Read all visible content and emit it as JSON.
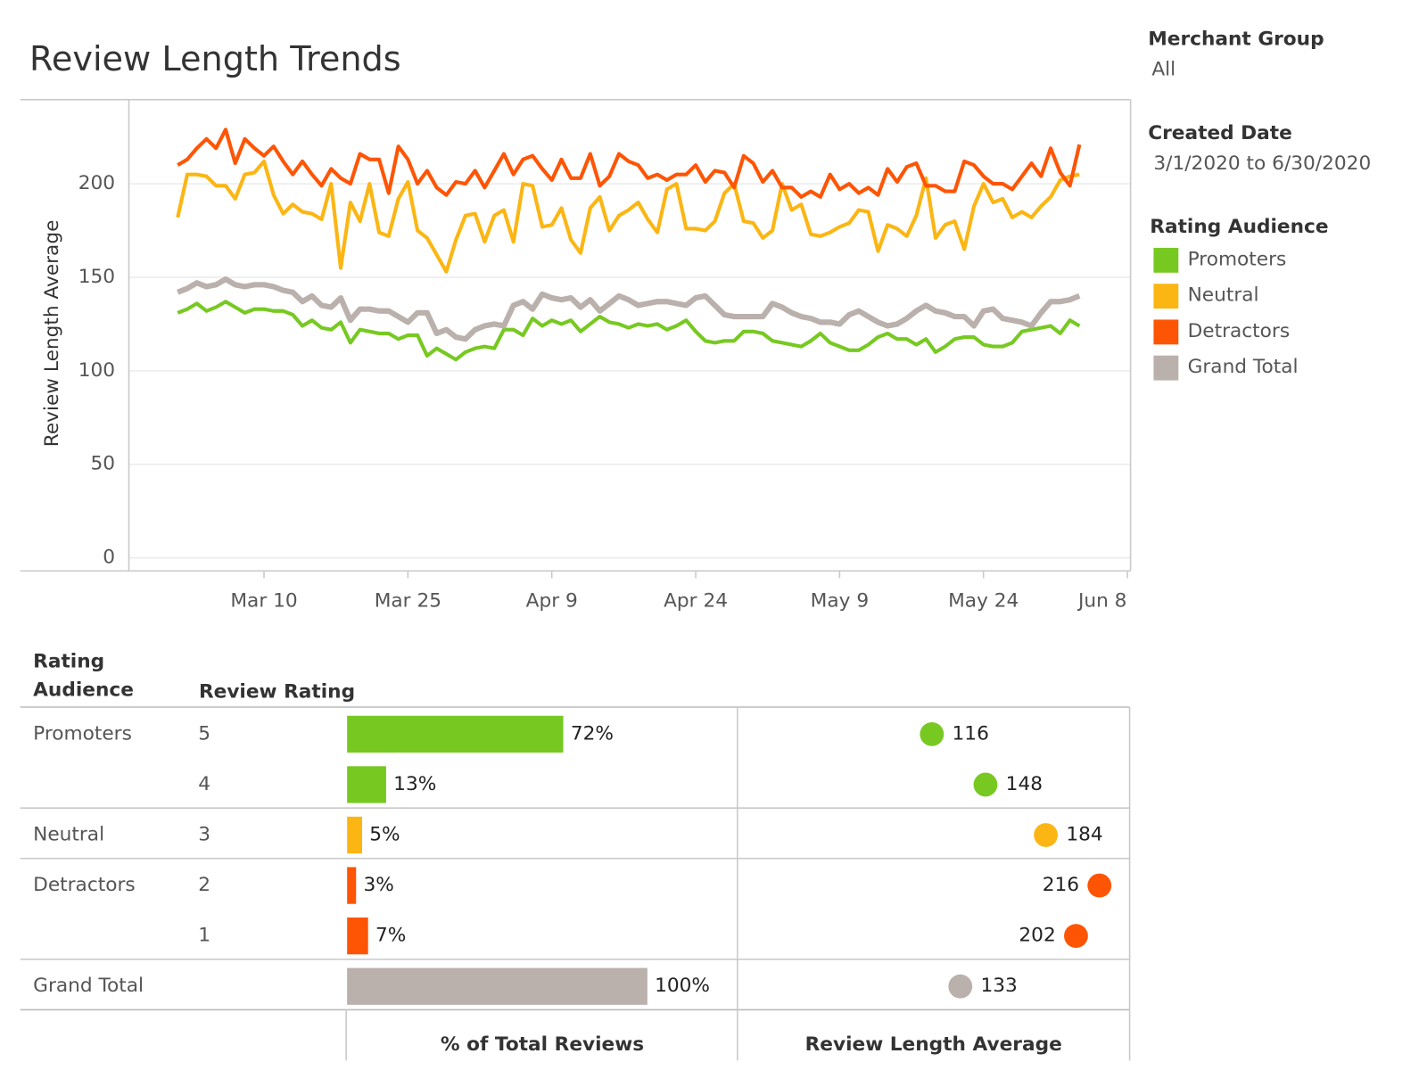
{
  "title": "Review Length Trends",
  "filters": [
    {
      "title": "Merchant Group",
      "value": "All"
    },
    {
      "title": "Created Date",
      "value": "3/1/2020 to 6/30/2020"
    }
  ],
  "chart_data": [
    {
      "type": "line",
      "y_label": "Review Length Average",
      "legend_title": "Rating Audience",
      "categories": [
        null,
        null,
        null,
        null,
        null,
        null,
        null,
        null,
        null,
        "Mar 10",
        null,
        null,
        null,
        null,
        null,
        null,
        null,
        null,
        null,
        null,
        null,
        null,
        null,
        null,
        "Mar 25",
        null,
        null,
        null,
        null,
        null,
        null,
        null,
        null,
        null,
        null,
        null,
        null,
        null,
        null,
        "Apr 9",
        null,
        null,
        null,
        null,
        null,
        null,
        null,
        null,
        null,
        null,
        null,
        null,
        null,
        null,
        "Apr 24",
        null,
        null,
        null,
        null,
        null,
        null,
        null,
        null,
        null,
        null,
        null,
        null,
        null,
        null,
        "May 9",
        null,
        null,
        null,
        null,
        null,
        null,
        null,
        null,
        null,
        null,
        null,
        null,
        null,
        null,
        "May 24",
        null,
        null,
        null,
        null,
        null,
        null,
        null,
        null,
        null,
        null,
        null,
        null,
        null,
        null,
        "Jun 8"
      ],
      "ylim": [
        -7,
        245
      ],
      "yticks": [
        0,
        50,
        100,
        150,
        200
      ],
      "grid": true,
      "series": [
        {
          "name": "Promoters",
          "color": "#77c922",
          "values": [
            131,
            133,
            136,
            132,
            134,
            137,
            134,
            131,
            133,
            133,
            132,
            132,
            130,
            124,
            127,
            123,
            122,
            126,
            115,
            122,
            121,
            120,
            120,
            117,
            119,
            119,
            108,
            112,
            109,
            106,
            110,
            112,
            113,
            112,
            122,
            122,
            119,
            128,
            124,
            127,
            125,
            127,
            121,
            125,
            129,
            126,
            125,
            123,
            125,
            124,
            125,
            122,
            124,
            127,
            121,
            116,
            115,
            116,
            116,
            121,
            121,
            120,
            116,
            115,
            114,
            113,
            116,
            120,
            115,
            113,
            111,
            111,
            114,
            118,
            120,
            117,
            117,
            114,
            117,
            110,
            113,
            117,
            118,
            118,
            114,
            113,
            113,
            115,
            121,
            122,
            123,
            124,
            120,
            127,
            124,
            null,
            null,
            null,
            null,
            null
          ]
        },
        {
          "name": "Neutral",
          "color": "#fbb614",
          "values": [
            182,
            205,
            205,
            204,
            199,
            199,
            192,
            205,
            206,
            212,
            194,
            184,
            189,
            185,
            184,
            181,
            200,
            155,
            190,
            180,
            200,
            174,
            172,
            192,
            201,
            175,
            171,
            162,
            153,
            170,
            183,
            184,
            169,
            183,
            186,
            169,
            200,
            199,
            177,
            178,
            187,
            170,
            163,
            187,
            193,
            175,
            183,
            186,
            190,
            181,
            174,
            197,
            200,
            176,
            176,
            175,
            180,
            195,
            200,
            180,
            179,
            171,
            175,
            200,
            186,
            189,
            173,
            172,
            174,
            177,
            179,
            186,
            185,
            164,
            178,
            176,
            172,
            183,
            203,
            171,
            178,
            180,
            165,
            188,
            200,
            190,
            192,
            182,
            185,
            182,
            188,
            193,
            202,
            204,
            205,
            null,
            null,
            null,
            null,
            null
          ]
        },
        {
          "name": "Detractors",
          "color": "#fe5505",
          "values": [
            210,
            213,
            219,
            224,
            219,
            229,
            211,
            224,
            219,
            215,
            220,
            212,
            205,
            212,
            205,
            199,
            208,
            203,
            200,
            216,
            213,
            213,
            195,
            220,
            213,
            200,
            207,
            198,
            194,
            201,
            200,
            207,
            198,
            207,
            216,
            205,
            213,
            215,
            208,
            202,
            213,
            203,
            203,
            216,
            199,
            204,
            216,
            212,
            210,
            203,
            205,
            202,
            205,
            205,
            210,
            201,
            207,
            206,
            198,
            215,
            211,
            201,
            207,
            198,
            198,
            193,
            196,
            193,
            205,
            197,
            200,
            195,
            198,
            194,
            208,
            201,
            209,
            211,
            199,
            199,
            196,
            196,
            212,
            210,
            204,
            200,
            200,
            197,
            204,
            211,
            204,
            219,
            206,
            199,
            221,
            null,
            null,
            null,
            null,
            null
          ]
        },
        {
          "name": "Grand Total",
          "color": "#bab0ac",
          "values": [
            142,
            144,
            147,
            145,
            146,
            149,
            146,
            145,
            146,
            146,
            145,
            143,
            142,
            137,
            140,
            135,
            134,
            139,
            127,
            133,
            133,
            132,
            132,
            129,
            126,
            131,
            131,
            120,
            122,
            118,
            117,
            122,
            124,
            125,
            124,
            135,
            137,
            133,
            141,
            139,
            138,
            139,
            134,
            138,
            132,
            136,
            140,
            138,
            135,
            136,
            137,
            137,
            136,
            135,
            139,
            140,
            135,
            130,
            129,
            129,
            129,
            129,
            136,
            134,
            131,
            129,
            128,
            126,
            126,
            125,
            130,
            132,
            129,
            126,
            124,
            125,
            128,
            132,
            135,
            132,
            131,
            129,
            129,
            124,
            132,
            133,
            128,
            127,
            126,
            124,
            131,
            137,
            137,
            138,
            140,
            null,
            null,
            null,
            null,
            null
          ]
        }
      ]
    },
    {
      "type": "bar",
      "row_headers": [
        "Rating Audience",
        "Review Rating"
      ],
      "groups": [
        "Promoters",
        null,
        "Neutral",
        "Detractors",
        null,
        "Grand Total"
      ],
      "categories": [
        "5",
        "4",
        "3",
        "2",
        "1",
        null
      ],
      "colors": [
        "#77c922",
        "#77c922",
        "#fbb614",
        "#fe5505",
        "#fe5505",
        "#bab0ac"
      ],
      "series": [
        {
          "name": "% of Total Reviews",
          "style": "bar",
          "xlim": [
            0,
            130
          ],
          "values": [
            72,
            13,
            5,
            3,
            7,
            100
          ],
          "value_labels": [
            "72%",
            "13%",
            "5%",
            "3%",
            "7%",
            "100%"
          ]
        },
        {
          "name": "Review Length Average",
          "style": "dot",
          "xlim": [
            0,
            234
          ],
          "values": [
            116,
            148,
            184,
            216,
            202,
            133
          ]
        }
      ]
    }
  ]
}
